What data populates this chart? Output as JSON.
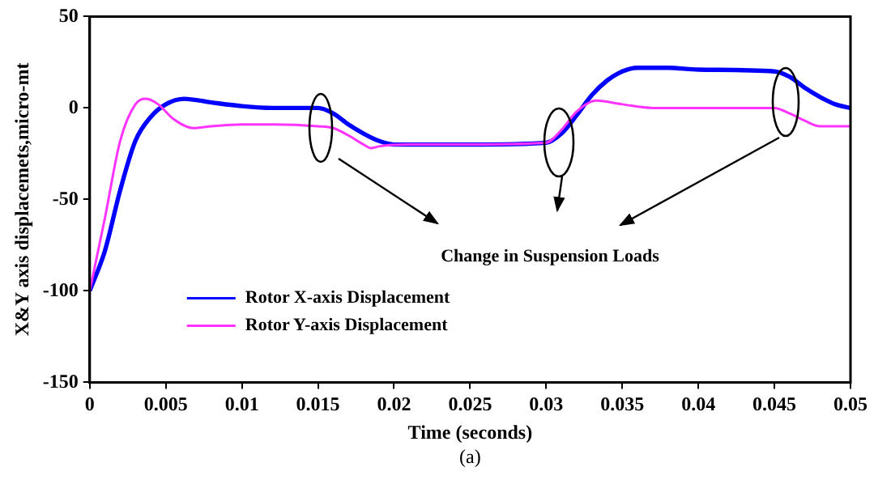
{
  "chart_data": {
    "type": "line",
    "xlabel": "Time (seconds)",
    "ylabel": "X&Y axis displacemets,micro-mt",
    "annotations": [
      "Change in Suspension Loads",
      "(a)"
    ],
    "xlim": [
      0,
      0.05
    ],
    "xticks": [
      0,
      0.005,
      0.01,
      0.015,
      0.02,
      0.025,
      0.03,
      0.035,
      0.04,
      0.045,
      0.05
    ],
    "ylim": [
      -150,
      50
    ],
    "yticks": [
      -150,
      -100,
      -50,
      0,
      50
    ],
    "grid": false,
    "legend": "bottom left",
    "marker": "none",
    "line_style": "solid",
    "series": [
      {
        "name": "Rotor X-axis Displacement",
        "color": "#0000ff",
        "x": [
          0,
          0.001,
          0.002,
          0.003,
          0.004,
          0.005,
          0.0062,
          0.008,
          0.01,
          0.012,
          0.015,
          0.016,
          0.017,
          0.018,
          0.019,
          0.02,
          0.021,
          0.025,
          0.03,
          0.031,
          0.032,
          0.033,
          0.034,
          0.035,
          0.036,
          0.038,
          0.04,
          0.045,
          0.046,
          0.047,
          0.048,
          0.049,
          0.05
        ],
        "values": [
          -100,
          -78,
          -45,
          -18,
          -5,
          2,
          5,
          3,
          1,
          0,
          0,
          -3,
          -9,
          -14,
          -18,
          -20,
          -20,
          -20,
          -19,
          -14,
          -4,
          7,
          15,
          20,
          22,
          22,
          21,
          20,
          17,
          11,
          6,
          2,
          0
        ]
      },
      {
        "name": "Rotor Y-axis Displacement",
        "color": "#ff33ff",
        "x": [
          0,
          0.001,
          0.002,
          0.003,
          0.0037,
          0.0045,
          0.0055,
          0.0068,
          0.008,
          0.01,
          0.012,
          0.015,
          0.016,
          0.017,
          0.018,
          0.0185,
          0.019,
          0.021,
          0.025,
          0.03,
          0.031,
          0.032,
          0.0333,
          0.035,
          0.037,
          0.04,
          0.045,
          0.046,
          0.047,
          0.048,
          0.049,
          0.05
        ],
        "values": [
          -100,
          -60,
          -18,
          2,
          5,
          2,
          -6,
          -11,
          -10,
          -9,
          -9,
          -10,
          -11,
          -15,
          -20,
          -22,
          -21,
          -20,
          -20,
          -19,
          -12,
          -2,
          4,
          2,
          0,
          0,
          0,
          -3,
          -7,
          -10,
          -10,
          -10
        ]
      }
    ]
  }
}
